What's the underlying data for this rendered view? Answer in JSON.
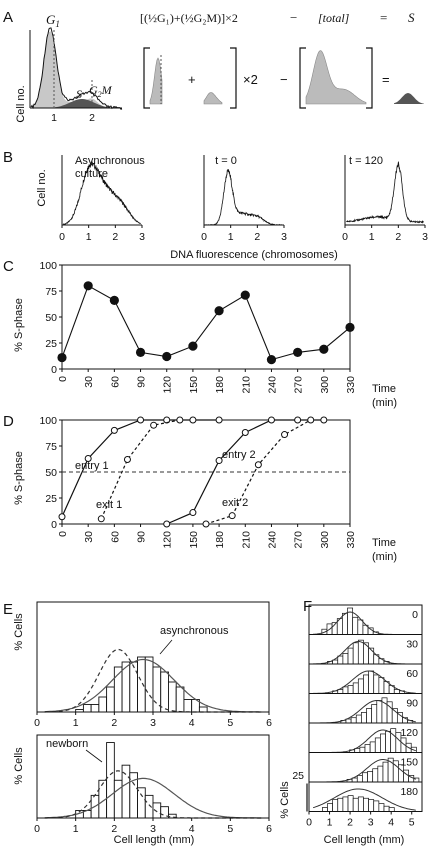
{
  "panels": {
    "A": "A",
    "B": "B",
    "C": "C",
    "D": "D",
    "E": "E",
    "F": "F"
  },
  "panelA": {
    "ylabel": "Cell no.",
    "peak_labels": {
      "g1": "G",
      "g1_sub": "1",
      "s": "S",
      "g2m": "G",
      "g2m_sub": "2",
      "g2m_suffix": "M"
    },
    "xticks": [
      "1",
      "2"
    ],
    "equation": {
      "lhs": "[(½G₁)+(½G₂M)]×2",
      "minus": "−",
      "total": "[total]",
      "equals": "=",
      "result": "S",
      "plus": "+",
      "times2": "×2"
    }
  },
  "panelB": {
    "ylabel": "Cell no.",
    "xlabel": "DNA fluorescence (chromosomes)",
    "titles": [
      "Asynchronous",
      "culture",
      "t = 0",
      "t = 120"
    ],
    "xticks": [
      "0",
      "1",
      "2",
      "3"
    ]
  },
  "panelC": {
    "ylabel": "% S-phase",
    "xlabel_1": "Time",
    "xlabel_2": "(min)",
    "yticks": [
      "0",
      "25",
      "50",
      "75",
      "100"
    ],
    "xticks": [
      "0",
      "30",
      "60",
      "90",
      "120",
      "150",
      "180",
      "210",
      "240",
      "270",
      "300",
      "330"
    ]
  },
  "panelD": {
    "ylabel": "% S-phase",
    "xlabel_1": "Time",
    "xlabel_2": "(min)",
    "yticks": [
      "0",
      "25",
      "50",
      "75",
      "100"
    ],
    "xticks": [
      "0",
      "30",
      "60",
      "90",
      "120",
      "150",
      "180",
      "210",
      "240",
      "270",
      "300",
      "330"
    ],
    "annotations": [
      "entry 1",
      "exit 1",
      "entry 2",
      "exit 2"
    ]
  },
  "panelE": {
    "ylabel": "% Cells",
    "xlabel": "Cell length (mm)",
    "xticks": [
      "0",
      "1",
      "2",
      "3",
      "4",
      "5",
      "6"
    ],
    "top_label": "asynchronous",
    "bottom_label": "newborn"
  },
  "panelF": {
    "ylabel": "% Cells",
    "xlabel": "Cell length (mm)",
    "xticks": [
      "0",
      "1",
      "2",
      "3",
      "4",
      "5"
    ],
    "scale_label": "25",
    "timepoints": [
      "0",
      "30",
      "60",
      "90",
      "120",
      "150",
      "180"
    ]
  },
  "chart_data": [
    {
      "type": "line",
      "panel": "C",
      "xlabel": "Time (min)",
      "ylabel": "% S-phase",
      "xlim": [
        0,
        330
      ],
      "ylim": [
        0,
        100
      ],
      "x": [
        0,
        30,
        60,
        90,
        120,
        150,
        180,
        210,
        240,
        270,
        300,
        330
      ],
      "series": [
        {
          "values": [
            11,
            80,
            66,
            16,
            12,
            22,
            56,
            71,
            9,
            16,
            19,
            40
          ]
        }
      ]
    },
    {
      "type": "line",
      "panel": "D",
      "xlabel": "Time (min)",
      "ylabel": "% S-phase",
      "xlim": [
        0,
        330
      ],
      "ylim": [
        0,
        100
      ],
      "reference_line": 50,
      "series": [
        {
          "name": "entry 1",
          "x": [
            0,
            30,
            60,
            90,
            120,
            150,
            180
          ],
          "values": [
            7,
            63,
            90,
            100,
            100,
            100,
            100
          ]
        },
        {
          "name": "exit 1",
          "x": [
            45,
            75,
            105,
            135
          ],
          "values": [
            5,
            62,
            95,
            100
          ]
        },
        {
          "name": "entry 2",
          "x": [
            120,
            150,
            180,
            210,
            240,
            270,
            300
          ],
          "values": [
            0,
            11,
            61,
            88,
            100,
            100,
            100
          ]
        },
        {
          "name": "exit 2",
          "x": [
            165,
            195,
            225,
            255,
            285
          ],
          "values": [
            0,
            8,
            57,
            86,
            100
          ]
        }
      ]
    },
    {
      "type": "bar",
      "panel": "E-top",
      "xlabel": "Cell length (mm)",
      "ylabel": "% Cells",
      "xlim": [
        0,
        6
      ],
      "bin_edges": [
        1.0,
        1.2,
        1.4,
        1.6,
        1.8,
        2.0,
        2.2,
        2.4,
        2.6,
        2.8,
        3.0,
        3.2,
        3.4,
        3.6,
        3.8,
        4.0,
        4.2,
        4.4
      ],
      "values": [
        0.5,
        1.5,
        1.5,
        3,
        5,
        9,
        10,
        10,
        11,
        11,
        9,
        8,
        6,
        5,
        2.5,
        2.5,
        1
      ],
      "curves": [
        {
          "name": "asynchronous",
          "style": "solid",
          "mean": 2.75,
          "sd": 0.8,
          "peak": 10.5
        },
        {
          "style": "dashed",
          "mean": 2.1,
          "sd": 0.5,
          "peak": 12.5
        }
      ]
    },
    {
      "type": "bar",
      "panel": "E-bottom",
      "xlabel": "Cell length (mm)",
      "ylabel": "% Cells",
      "xlim": [
        0,
        6
      ],
      "bin_edges": [
        1.0,
        1.2,
        1.4,
        1.6,
        1.8,
        2.0,
        2.2,
        2.4,
        2.6,
        2.8,
        3.0,
        3.2,
        3.4,
        3.6
      ],
      "values": [
        2,
        2,
        6,
        10,
        20,
        10,
        14,
        12,
        8,
        6,
        4,
        3,
        1
      ],
      "curves": [
        {
          "style": "solid",
          "mean": 2.75,
          "sd": 0.8,
          "peak": 10.5
        },
        {
          "name": "newborn",
          "style": "dashed",
          "mean": 2.1,
          "sd": 0.5,
          "peak": 12.5
        }
      ]
    },
    {
      "type": "bar",
      "panel": "F",
      "xlabel": "Cell length (mm)",
      "ylabel": "% Cells",
      "xlim": [
        0,
        5
      ],
      "scale_bar": 25,
      "facets": [
        {
          "t": "0",
          "mean": 2.0,
          "sd": 0.45,
          "values": [
            0.2,
            0.4,
            0.45,
            0.6,
            0.8,
            1.0,
            0.65,
            0.55,
            0.35,
            0.25,
            0.1
          ]
        },
        {
          "t": "30",
          "mean": 2.4,
          "sd": 0.5,
          "values": [
            0.1,
            0.15,
            0.3,
            0.4,
            0.6,
            0.8,
            0.9,
            0.8,
            0.6,
            0.35,
            0.2,
            0.1
          ]
        },
        {
          "t": "60",
          "mean": 2.9,
          "sd": 0.6,
          "values": [
            0.1,
            0.15,
            0.25,
            0.3,
            0.4,
            0.55,
            0.7,
            0.85,
            0.7,
            0.6,
            0.45,
            0.3,
            0.15,
            0.1
          ]
        },
        {
          "t": "90",
          "mean": 3.3,
          "sd": 0.6,
          "values": [
            0.1,
            0.15,
            0.2,
            0.3,
            0.4,
            0.55,
            0.7,
            0.85,
            0.95,
            0.8,
            0.55,
            0.4,
            0.2,
            0.1
          ]
        },
        {
          "t": "120",
          "mean": 3.6,
          "sd": 0.55,
          "values": [
            0.1,
            0.15,
            0.2,
            0.3,
            0.4,
            0.55,
            0.7,
            0.8,
            0.9,
            0.75,
            0.55,
            0.35,
            0.2
          ]
        },
        {
          "t": "150",
          "mean": 3.6,
          "sd": 0.6,
          "values": [
            0.1,
            0.15,
            0.25,
            0.35,
            0.4,
            0.5,
            0.6,
            0.75,
            0.9,
            0.8,
            0.65,
            0.45,
            0.25,
            0.15
          ]
        },
        {
          "t": "180",
          "mean": 2.4,
          "sd": 0.9,
          "values": [
            0.15,
            0.3,
            0.45,
            0.5,
            0.55,
            0.6,
            0.5,
            0.55,
            0.5,
            0.45,
            0.4,
            0.3,
            0.2,
            0.15
          ]
        }
      ]
    }
  ]
}
